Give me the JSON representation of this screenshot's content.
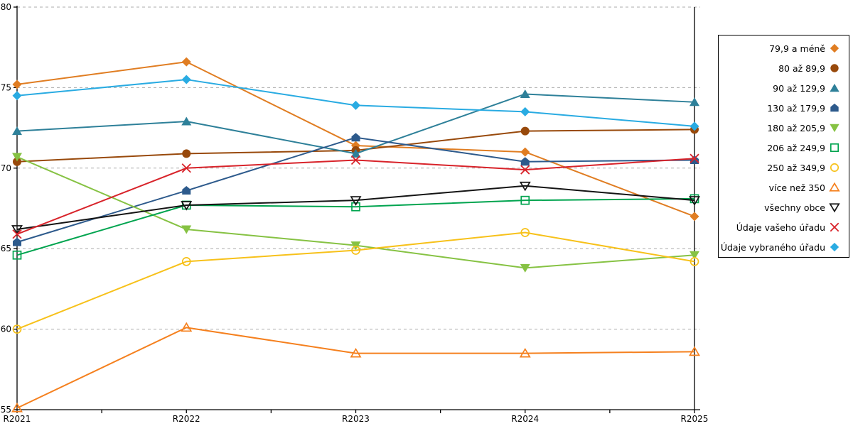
{
  "chart_data": {
    "type": "line",
    "title": "",
    "xlabel": "",
    "ylabel": "",
    "x": [
      "R2021",
      "R2022",
      "R2023",
      "R2024",
      "R2025"
    ],
    "ylim": [
      55,
      80
    ],
    "yticks": [
      55,
      60,
      65,
      70,
      75,
      80
    ],
    "grid": "horizontal-dashed",
    "gridline_color": "#ABABAB",
    "axis_color": "#000000",
    "legend_position": "right-outside",
    "series": [
      {
        "name": "79,9 a méně",
        "color": "#E07D22",
        "marker": "diamond-filled",
        "values": [
          75.2,
          76.6,
          71.4,
          71.0,
          67.0
        ]
      },
      {
        "name": "80 až 89,9",
        "color": "#98490B",
        "marker": "circle-filled",
        "values": [
          70.4,
          70.9,
          71.1,
          72.3,
          72.4
        ]
      },
      {
        "name": "90 až 129,9",
        "color": "#2E8099",
        "marker": "triangle-up-filled",
        "values": [
          72.3,
          72.9,
          70.9,
          74.6,
          74.1
        ]
      },
      {
        "name": "130 až 179,9",
        "color": "#2D5A8C",
        "marker": "pentagon-filled",
        "values": [
          65.4,
          68.6,
          71.9,
          70.4,
          70.5
        ]
      },
      {
        "name": "180 až 205,9",
        "color": "#86C243",
        "marker": "triangle-down-filled",
        "values": [
          70.7,
          66.2,
          65.2,
          63.8,
          64.6
        ]
      },
      {
        "name": "206 až 249,9",
        "color": "#00A44F",
        "marker": "square-open",
        "values": [
          64.6,
          67.7,
          67.6,
          68.0,
          68.1
        ]
      },
      {
        "name": "250 až 349,9",
        "color": "#F7C11A",
        "marker": "circle-open",
        "values": [
          60.0,
          64.2,
          64.9,
          66.0,
          64.2
        ]
      },
      {
        "name": "více než 350",
        "color": "#F5801E",
        "marker": "triangle-up-open",
        "values": [
          55.1,
          60.1,
          58.5,
          58.5,
          58.6
        ]
      },
      {
        "name": "všechny obce",
        "color": "#141414",
        "marker": "triangle-down-open",
        "values": [
          66.2,
          67.7,
          68.0,
          68.9,
          68.0
        ]
      },
      {
        "name": "Údaje vašeho úřadu",
        "color": "#D8232A",
        "marker": "x-cross",
        "values": [
          65.9,
          70.0,
          70.5,
          69.9,
          70.6
        ]
      },
      {
        "name": "Údaje vybraného úřadu",
        "color": "#29ABE2",
        "marker": "diamond-filled",
        "values": [
          74.5,
          75.5,
          73.9,
          73.5,
          72.6
        ]
      }
    ]
  }
}
